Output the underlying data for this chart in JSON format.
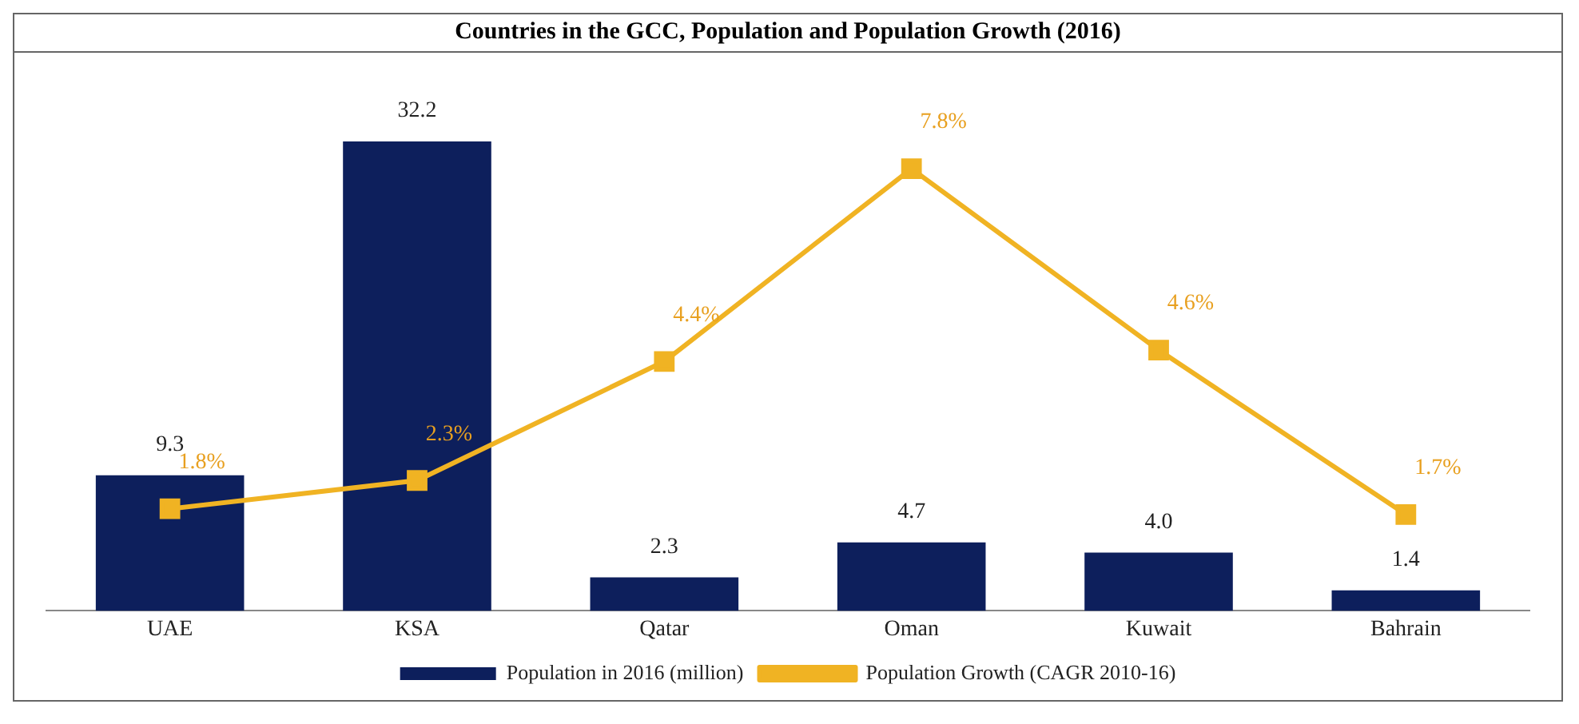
{
  "chart_data": {
    "type": "bar",
    "title": "Countries in the GCC, Population and Population Growth (2016)",
    "categories": [
      "UAE",
      "KSA",
      "Qatar",
      "Oman",
      "Kuwait",
      "Bahrain"
    ],
    "series": [
      {
        "name": "Population in 2016 (million)",
        "color": "#0d1f5c",
        "values": [
          9.3,
          32.2,
          2.3,
          4.7,
          4.0,
          1.4
        ],
        "value_labels": [
          "9.3",
          "32.2",
          "2.3",
          "4.7",
          "4.0",
          "1.4"
        ]
      },
      {
        "name": "Population Growth (CAGR 2010-16)",
        "type": "line",
        "axis": "y2",
        "color": "#f0b323",
        "values": [
          1.8,
          2.3,
          4.4,
          7.8,
          4.6,
          1.7
        ],
        "value_labels": [
          "1.8%",
          "2.3%",
          "4.4%",
          "7.8%",
          "4.6%",
          "1.7%"
        ]
      }
    ],
    "tick_labels": "x",
    "grid": false,
    "legend": "bottom",
    "marker": "square",
    "line_style": "solid"
  }
}
